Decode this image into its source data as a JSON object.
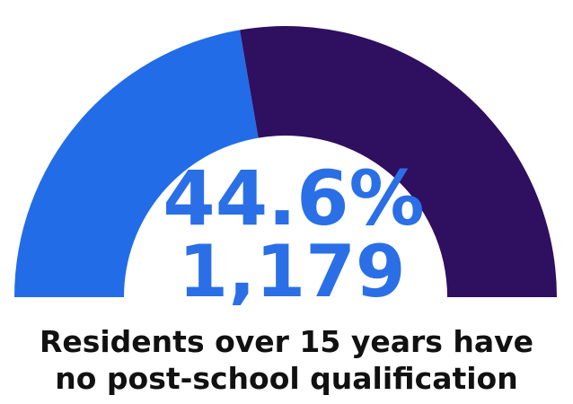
{
  "chart_data": {
    "type": "gauge",
    "percent": 44.6,
    "count": 1179,
    "percent_label": "44.6%",
    "count_label": "1,179",
    "caption_lines": [
      "Residents over 15 years have",
      "no post-school qualification"
    ],
    "colors": {
      "value": "#226ce8",
      "remainder": "#2f0f5f",
      "text": "#2a6fe6",
      "caption": "#111111"
    }
  }
}
